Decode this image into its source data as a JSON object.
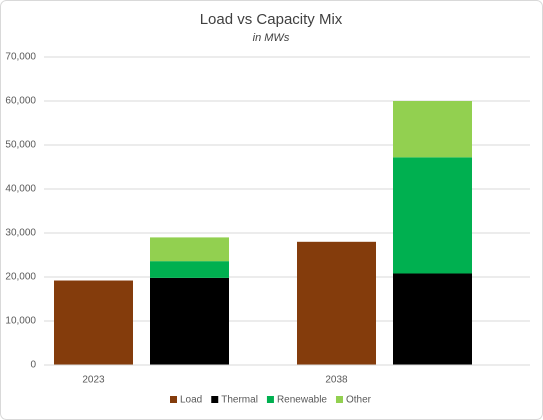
{
  "chart_data": {
    "type": "bar",
    "title": "Load vs Capacity Mix",
    "subtitle": "in MWs",
    "categories": [
      "2023",
      "2038"
    ],
    "series": [
      {
        "name": "Load",
        "color": "#843c0c",
        "values": [
          19200,
          28000
        ]
      },
      {
        "name": "Thermal",
        "color": "#000000",
        "values": [
          19800,
          20800
        ]
      },
      {
        "name": "Renewable",
        "color": "#00b050",
        "values": [
          3800,
          26400
        ]
      },
      {
        "name": "Other",
        "color": "#92d050",
        "values": [
          5400,
          12800
        ]
      }
    ],
    "ylim": [
      0,
      70000
    ],
    "yticks": [
      0,
      {
        "value": 10000,
        "label": "10,000"
      },
      {
        "value": 20000,
        "label": "20,000"
      },
      {
        "value": 30000,
        "label": "30,000"
      },
      {
        "value": 40000,
        "label": "40,000"
      },
      {
        "value": 50000,
        "label": "50,000"
      },
      {
        "value": 60000,
        "label": "60,000"
      },
      {
        "value": 70000,
        "label": "70,000"
      }
    ],
    "grid": true,
    "legend": "bottom"
  }
}
